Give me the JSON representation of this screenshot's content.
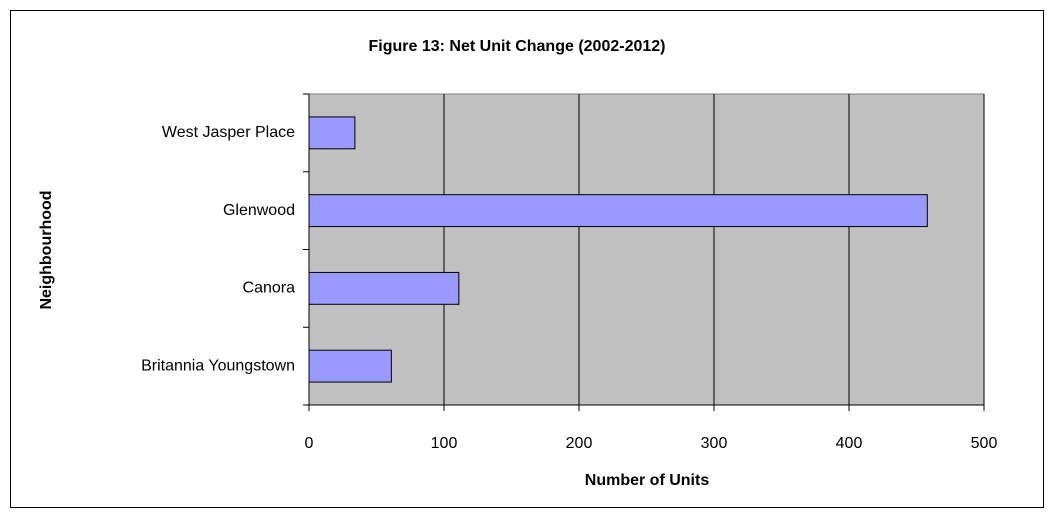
{
  "chart_data": {
    "type": "barh",
    "title": "Figure 13: Net Unit Change (2002-2012)",
    "x_label": "Number of Units",
    "y_label": "Neighbourhood",
    "categories": [
      "West Jasper Place",
      "Glenwood",
      "Canora",
      "Britannia Youngstown"
    ],
    "values": [
      34,
      458,
      111,
      61
    ],
    "color": "#9999ff",
    "xlim": [
      0,
      500
    ],
    "xticks": [
      0,
      100,
      200,
      300,
      400,
      500
    ],
    "grid": true
  }
}
